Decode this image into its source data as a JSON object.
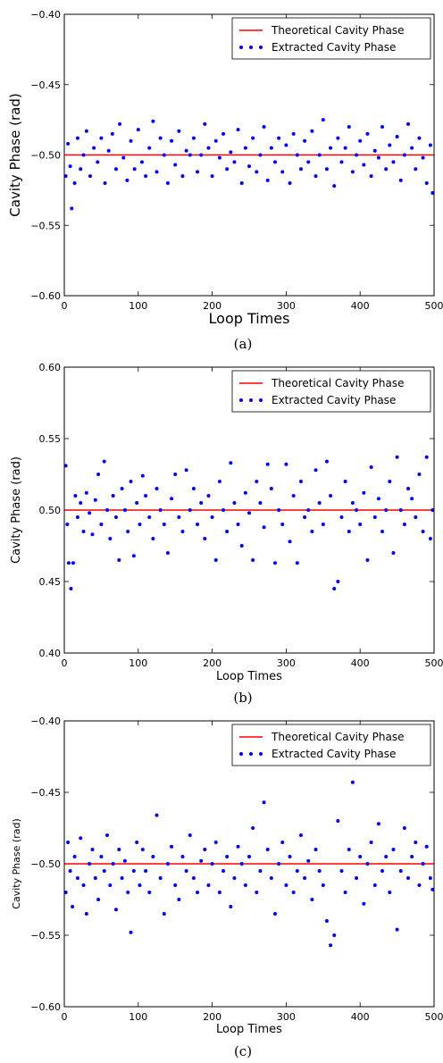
{
  "chart_data": [
    {
      "type": "scatter",
      "panel": "(a)",
      "xlabel": "Loop Times",
      "ylabel": "Cavity Phase (rad)",
      "xlim": [
        0,
        500
      ],
      "ylim": [
        -0.6,
        -0.4
      ],
      "xticks": [
        0,
        100,
        200,
        300,
        400,
        500
      ],
      "yticks": [
        -0.6,
        -0.55,
        -0.5,
        -0.45,
        -0.4
      ],
      "xtick_labels": [
        "0",
        "100",
        "200",
        "300",
        "400",
        "500"
      ],
      "ytick_labels": [
        "−0.60",
        "−0.55",
        "−0.50",
        "−0.45",
        "−0.40"
      ],
      "legend": {
        "position": "top-right",
        "items": [
          "Theoretical Cavity Phase",
          "Extracted Cavity Phase"
        ]
      },
      "theoretical_value": -0.5,
      "series": [
        {
          "name": "Theoretical Cavity Phase",
          "kind": "line",
          "color": "#ff0000"
        },
        {
          "name": "Extracted Cavity Phase",
          "kind": "scatter",
          "color": "#0000ff",
          "x": [
            2,
            5,
            8,
            10,
            14,
            18,
            22,
            26,
            30,
            35,
            40,
            45,
            50,
            55,
            60,
            65,
            70,
            75,
            80,
            85,
            90,
            95,
            100,
            105,
            110,
            115,
            120,
            125,
            130,
            135,
            140,
            145,
            150,
            155,
            160,
            165,
            170,
            175,
            180,
            185,
            190,
            195,
            200,
            205,
            210,
            215,
            220,
            225,
            230,
            235,
            240,
            245,
            250,
            255,
            260,
            265,
            270,
            275,
            280,
            285,
            290,
            295,
            300,
            305,
            310,
            315,
            320,
            325,
            330,
            335,
            340,
            345,
            350,
            355,
            360,
            365,
            370,
            375,
            380,
            385,
            390,
            395,
            400,
            405,
            410,
            415,
            420,
            425,
            430,
            435,
            440,
            445,
            450,
            455,
            460,
            465,
            470,
            475,
            480,
            485,
            490,
            495,
            498
          ],
          "y": [
            -0.515,
            -0.492,
            -0.508,
            -0.538,
            -0.52,
            -0.488,
            -0.51,
            -0.5,
            -0.483,
            -0.515,
            -0.495,
            -0.505,
            -0.488,
            -0.52,
            -0.497,
            -0.485,
            -0.51,
            -0.478,
            -0.502,
            -0.518,
            -0.49,
            -0.51,
            -0.482,
            -0.505,
            -0.515,
            -0.495,
            -0.476,
            -0.512,
            -0.488,
            -0.5,
            -0.52,
            -0.49,
            -0.507,
            -0.483,
            -0.515,
            -0.497,
            -0.5,
            -0.488,
            -0.512,
            -0.5,
            -0.478,
            -0.495,
            -0.515,
            -0.49,
            -0.502,
            -0.485,
            -0.51,
            -0.498,
            -0.505,
            -0.482,
            -0.52,
            -0.495,
            -0.508,
            -0.488,
            -0.512,
            -0.5,
            -0.48,
            -0.518,
            -0.495,
            -0.505,
            -0.488,
            -0.512,
            -0.493,
            -0.52,
            -0.485,
            -0.5,
            -0.51,
            -0.49,
            -0.505,
            -0.483,
            -0.515,
            -0.5,
            -0.475,
            -0.51,
            -0.495,
            -0.522,
            -0.488,
            -0.505,
            -0.495,
            -0.48,
            -0.512,
            -0.5,
            -0.49,
            -0.507,
            -0.485,
            -0.515,
            -0.497,
            -0.502,
            -0.48,
            -0.51,
            -0.493,
            -0.505,
            -0.487,
            -0.518,
            -0.5,
            -0.478,
            -0.495,
            -0.51,
            -0.488,
            -0.502,
            -0.52,
            -0.493,
            -0.527
          ]
        }
      ]
    },
    {
      "type": "scatter",
      "panel": "(b)",
      "xlabel": "Loop Times",
      "ylabel": "Cavity Phase (rad)",
      "xlim": [
        0,
        500
      ],
      "ylim": [
        0.4,
        0.6
      ],
      "xticks": [
        0,
        100,
        200,
        300,
        400,
        500
      ],
      "yticks": [
        0.4,
        0.45,
        0.5,
        0.55,
        0.6
      ],
      "xtick_labels": [
        "0",
        "100",
        "200",
        "300",
        "400",
        "500"
      ],
      "ytick_labels": [
        "0.40",
        "0.45",
        "0.50",
        "0.55",
        "0.60"
      ],
      "legend": {
        "position": "top-right",
        "items": [
          "Theoretical Cavity Phase",
          "Extracted Cavity Phase"
        ]
      },
      "theoretical_value": 0.5,
      "series": [
        {
          "name": "Theoretical Cavity Phase",
          "kind": "line",
          "color": "#ff0000"
        },
        {
          "name": "Extracted Cavity Phase",
          "kind": "scatter",
          "color": "#0000ff",
          "x": [
            2,
            4,
            6,
            9,
            12,
            15,
            18,
            22,
            26,
            30,
            34,
            38,
            42,
            46,
            50,
            54,
            58,
            62,
            66,
            70,
            74,
            78,
            82,
            86,
            90,
            94,
            98,
            102,
            106,
            110,
            115,
            120,
            125,
            130,
            135,
            140,
            145,
            150,
            155,
            160,
            165,
            170,
            175,
            180,
            185,
            190,
            195,
            200,
            205,
            210,
            215,
            220,
            225,
            230,
            235,
            240,
            245,
            250,
            255,
            260,
            265,
            270,
            275,
            280,
            285,
            290,
            295,
            300,
            305,
            310,
            315,
            320,
            325,
            330,
            335,
            340,
            345,
            350,
            355,
            360,
            365,
            370,
            375,
            380,
            385,
            390,
            395,
            400,
            405,
            410,
            415,
            420,
            425,
            430,
            435,
            440,
            445,
            450,
            455,
            460,
            465,
            470,
            475,
            480,
            485,
            490,
            495,
            498
          ],
          "y": [
            0.531,
            0.49,
            0.463,
            0.445,
            0.463,
            0.51,
            0.495,
            0.505,
            0.485,
            0.512,
            0.498,
            0.483,
            0.507,
            0.525,
            0.49,
            0.534,
            0.5,
            0.48,
            0.51,
            0.495,
            0.465,
            0.515,
            0.5,
            0.485,
            0.52,
            0.468,
            0.505,
            0.49,
            0.524,
            0.51,
            0.495,
            0.48,
            0.515,
            0.5,
            0.49,
            0.47,
            0.508,
            0.525,
            0.495,
            0.485,
            0.528,
            0.5,
            0.515,
            0.49,
            0.505,
            0.48,
            0.51,
            0.495,
            0.465,
            0.52,
            0.5,
            0.485,
            0.533,
            0.505,
            0.49,
            0.475,
            0.512,
            0.498,
            0.465,
            0.52,
            0.505,
            0.488,
            0.532,
            0.515,
            0.463,
            0.5,
            0.49,
            0.532,
            0.478,
            0.51,
            0.463,
            0.52,
            0.495,
            0.5,
            0.485,
            0.528,
            0.505,
            0.49,
            0.534,
            0.51,
            0.445,
            0.45,
            0.495,
            0.52,
            0.485,
            0.505,
            0.5,
            0.49,
            0.512,
            0.465,
            0.53,
            0.495,
            0.508,
            0.485,
            0.5,
            0.52,
            0.47,
            0.537,
            0.5,
            0.49,
            0.515,
            0.508,
            0.495,
            0.525,
            0.485,
            0.537,
            0.48,
            0.5
          ]
        }
      ]
    },
    {
      "type": "scatter",
      "panel": "(c)",
      "xlabel": "Loop Times",
      "ylabel": "Cavity Phase (rad)",
      "xlim": [
        0,
        500
      ],
      "ylim": [
        -0.6,
        -0.4
      ],
      "xticks": [
        0,
        100,
        200,
        300,
        400,
        500
      ],
      "yticks": [
        -0.6,
        -0.55,
        -0.5,
        -0.45,
        -0.4
      ],
      "xtick_labels": [
        "0",
        "100",
        "200",
        "300",
        "400",
        "500"
      ],
      "ytick_labels": [
        "−0.60",
        "−0.55",
        "−0.50",
        "−0.45",
        "−0.40"
      ],
      "legend": {
        "position": "top-right",
        "items": [
          "Theoretical Cavity Phase",
          "Extracted Cavity Phase"
        ]
      },
      "theoretical_value": -0.5,
      "series": [
        {
          "name": "Theoretical Cavity Phase",
          "kind": "line",
          "color": "#ff0000"
        },
        {
          "name": "Extracted Cavity Phase",
          "kind": "scatter",
          "color": "#0000ff",
          "x": [
            2,
            5,
            8,
            11,
            14,
            18,
            22,
            26,
            30,
            34,
            38,
            42,
            46,
            50,
            54,
            58,
            62,
            66,
            70,
            74,
            78,
            82,
            86,
            90,
            94,
            98,
            102,
            106,
            110,
            115,
            120,
            125,
            130,
            135,
            140,
            145,
            150,
            155,
            160,
            165,
            170,
            175,
            180,
            185,
            190,
            195,
            200,
            205,
            210,
            215,
            220,
            225,
            230,
            235,
            240,
            245,
            250,
            255,
            260,
            265,
            270,
            275,
            280,
            285,
            290,
            295,
            300,
            305,
            310,
            315,
            320,
            325,
            330,
            335,
            340,
            345,
            350,
            355,
            360,
            365,
            370,
            375,
            380,
            385,
            390,
            395,
            400,
            405,
            410,
            415,
            420,
            425,
            430,
            435,
            440,
            445,
            450,
            455,
            460,
            465,
            470,
            475,
            480,
            485,
            490,
            495,
            498
          ],
          "y": [
            -0.52,
            -0.485,
            -0.505,
            -0.53,
            -0.495,
            -0.51,
            -0.482,
            -0.515,
            -0.535,
            -0.5,
            -0.49,
            -0.51,
            -0.525,
            -0.495,
            -0.505,
            -0.48,
            -0.515,
            -0.5,
            -0.532,
            -0.49,
            -0.51,
            -0.498,
            -0.52,
            -0.548,
            -0.505,
            -0.485,
            -0.515,
            -0.49,
            -0.505,
            -0.52,
            -0.495,
            -0.466,
            -0.51,
            -0.535,
            -0.5,
            -0.488,
            -0.515,
            -0.525,
            -0.495,
            -0.505,
            -0.48,
            -0.51,
            -0.52,
            -0.498,
            -0.49,
            -0.515,
            -0.5,
            -0.485,
            -0.52,
            -0.505,
            -0.495,
            -0.53,
            -0.51,
            -0.488,
            -0.5,
            -0.515,
            -0.495,
            -0.475,
            -0.52,
            -0.505,
            -0.457,
            -0.49,
            -0.51,
            -0.535,
            -0.5,
            -0.485,
            -0.515,
            -0.495,
            -0.52,
            -0.505,
            -0.48,
            -0.51,
            -0.498,
            -0.525,
            -0.49,
            -0.505,
            -0.515,
            -0.54,
            -0.557,
            -0.55,
            -0.47,
            -0.505,
            -0.52,
            -0.49,
            -0.443,
            -0.51,
            -0.495,
            -0.528,
            -0.5,
            -0.485,
            -0.515,
            -0.472,
            -0.505,
            -0.495,
            -0.52,
            -0.49,
            -0.546,
            -0.505,
            -0.475,
            -0.51,
            -0.495,
            -0.485,
            -0.515,
            -0.5,
            -0.488,
            -0.51,
            -0.518
          ]
        }
      ]
    }
  ],
  "captions": [
    "(a)",
    "(b)",
    "(c)"
  ]
}
